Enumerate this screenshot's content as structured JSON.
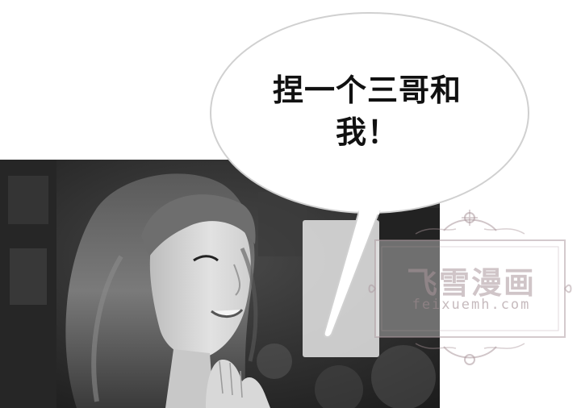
{
  "speech_bubble": {
    "line1": "捏一个三哥和",
    "line2": "我！"
  },
  "watermark": {
    "title": "飞雪漫画",
    "url": "feixuemh.com"
  }
}
